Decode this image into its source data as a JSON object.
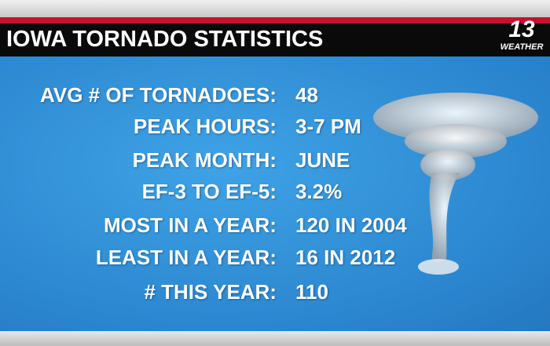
{
  "header": {
    "title": "IOWA TORNADO STATISTICS",
    "logo": {
      "number": "13",
      "tagline": "WEATHER"
    }
  },
  "stats": {
    "rows": [
      {
        "label": "AVG # OF TORNADOES:",
        "value": "48"
      },
      {
        "label": "PEAK HOURS:",
        "value": "3-7 PM"
      },
      {
        "label": "PEAK MONTH:",
        "value": "JUNE"
      },
      {
        "label": "EF-3 TO EF-5:",
        "value": "3.2%"
      },
      {
        "label": "MOST IN A YEAR:",
        "value": "120 IN 2004"
      },
      {
        "label": "LEAST IN A YEAR:",
        "value": "16 IN 2012"
      },
      {
        "label": "# THIS YEAR:",
        "value": "110"
      }
    ]
  }
}
